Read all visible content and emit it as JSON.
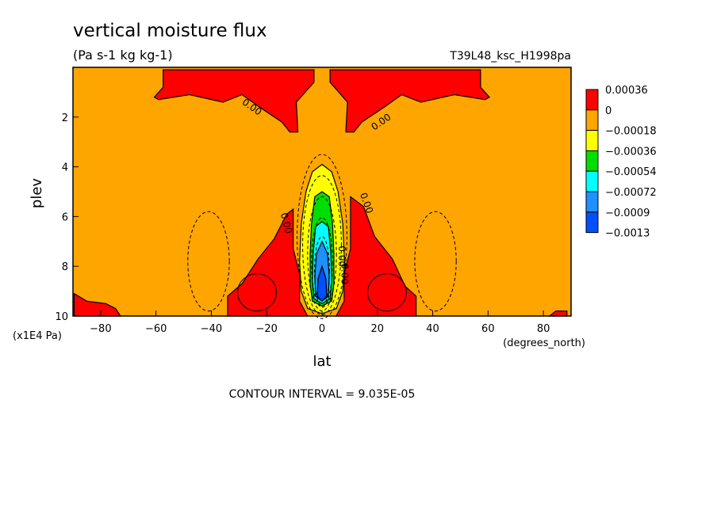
{
  "chart_data": {
    "type": "heatmap",
    "title": "vertical moisture flux",
    "units": "(Pa s-1 kg kg-1)",
    "run_label": "T39L48_ksc_H1998pa",
    "xlabel": "lat",
    "x_units": "(degrees_north)",
    "ylabel": "plev",
    "y_units": "(x1E4 Pa)",
    "xlim": [
      -90,
      90
    ],
    "ylim": [
      10,
      0
    ],
    "x_ticks": [
      -80,
      -60,
      -40,
      -20,
      0,
      20,
      40,
      60,
      80
    ],
    "y_ticks": [
      2,
      4,
      6,
      8,
      10
    ],
    "contour_interval_text": "CONTOUR INTERVAL = 9.035E-05",
    "contour_labels": [
      "0.00",
      "0.00",
      "0.00",
      "0.00",
      "0.00",
      "0.00"
    ],
    "colorbar": {
      "labels": [
        "0.00036",
        "0",
        "-0.00018",
        "-0.00036",
        "-0.00054",
        "-0.00072",
        "-0.0009",
        "-0.0013"
      ],
      "colors": [
        "#ff0000",
        "#ffa500",
        "#ffff00",
        "#00dd00",
        "#00ffff",
        "#1e90ff",
        "#0050ff"
      ]
    },
    "background_color": "#ffa500",
    "regions": [
      {
        "name": "positive-upper-left",
        "color": "#ff0000",
        "points": [
          [
            -57.4,
            0.1
          ],
          [
            -57.4,
            0.8
          ],
          [
            -60.6,
            1.2
          ],
          [
            -59.1,
            1.3
          ],
          [
            -47.9,
            1.1
          ],
          [
            -35.8,
            1.4
          ],
          [
            -28.9,
            1.1
          ],
          [
            -22.6,
            1.6
          ],
          [
            -14.5,
            2.2
          ],
          [
            -11.6,
            2.6
          ],
          [
            -8.7,
            2.6
          ],
          [
            -9.3,
            1.4
          ],
          [
            -2.9,
            0.6
          ],
          [
            -2.9,
            0.1
          ]
        ]
      },
      {
        "name": "positive-upper-right",
        "color": "#ff0000",
        "points": [
          [
            2.9,
            0.1
          ],
          [
            2.9,
            0.6
          ],
          [
            9.2,
            1.4
          ],
          [
            8.6,
            2.6
          ],
          [
            11.5,
            2.6
          ],
          [
            14.4,
            2.2
          ],
          [
            22.5,
            1.6
          ],
          [
            28.8,
            1.1
          ],
          [
            35.7,
            1.4
          ],
          [
            47.8,
            1.1
          ],
          [
            58.9,
            1.3
          ],
          [
            60.5,
            1.2
          ],
          [
            57.3,
            0.8
          ],
          [
            57.3,
            0.1
          ]
        ]
      },
      {
        "name": "positive-lower-left",
        "color": "#ff0000",
        "points": [
          [
            -34.1,
            10
          ],
          [
            -34.1,
            9.2
          ],
          [
            -28.9,
            8.7
          ],
          [
            -23.1,
            7.7
          ],
          [
            -17.3,
            6.9
          ],
          [
            -12.7,
            5.9
          ],
          [
            -10.4,
            5.7
          ],
          [
            -10.4,
            7.3
          ],
          [
            -8.1,
            8.3
          ],
          [
            -8.1,
            9.4
          ],
          [
            -5.2,
            10
          ]
        ]
      },
      {
        "name": "positive-lower-right",
        "color": "#ff0000",
        "points": [
          [
            5.1,
            10
          ],
          [
            8.0,
            9.4
          ],
          [
            8.0,
            8.3
          ],
          [
            10.3,
            7.3
          ],
          [
            10.3,
            5.2
          ],
          [
            15.0,
            5.6
          ],
          [
            19.0,
            6.8
          ],
          [
            25.4,
            7.7
          ],
          [
            30.0,
            8.8
          ],
          [
            34.0,
            9.2
          ],
          [
            34.0,
            10
          ]
        ]
      },
      {
        "name": "positive-bottom-left-corner",
        "color": "#ff0000",
        "points": [
          [
            -89.6,
            10
          ],
          [
            -89.6,
            9.1
          ],
          [
            -85.0,
            9.4
          ],
          [
            -78.1,
            9.5
          ],
          [
            -74.6,
            9.7
          ],
          [
            -72.8,
            10
          ]
        ]
      },
      {
        "name": "positive-bottom-right-corner",
        "color": "#ff0000",
        "points": [
          [
            82.2,
            10
          ],
          [
            84.5,
            9.8
          ],
          [
            88.5,
            9.8
          ],
          [
            88.5,
            10
          ]
        ]
      },
      {
        "name": "negative-level-1",
        "color": "#ffff00",
        "points": [
          [
            0.0,
            3.9
          ],
          [
            3.5,
            4.2
          ],
          [
            5.8,
            5.0
          ],
          [
            7.5,
            6.3
          ],
          [
            8.1,
            7.8
          ],
          [
            7.5,
            9.0
          ],
          [
            5.2,
            9.7
          ],
          [
            0.0,
            9.9
          ],
          [
            -5.2,
            9.7
          ],
          [
            -7.5,
            9.0
          ],
          [
            -8.1,
            7.8
          ],
          [
            -7.5,
            6.3
          ],
          [
            -5.8,
            5.0
          ],
          [
            -3.5,
            4.2
          ]
        ]
      },
      {
        "name": "negative-level-2",
        "color": "#00dd00",
        "points": [
          [
            0.0,
            5.0
          ],
          [
            2.6,
            5.2
          ],
          [
            3.8,
            6.3
          ],
          [
            4.3,
            7.5
          ],
          [
            4.3,
            8.7
          ],
          [
            3.5,
            9.4
          ],
          [
            0.0,
            9.6
          ],
          [
            -3.5,
            9.4
          ],
          [
            -4.3,
            8.7
          ],
          [
            -4.3,
            7.5
          ],
          [
            -3.8,
            6.3
          ],
          [
            -2.6,
            5.2
          ]
        ]
      },
      {
        "name": "negative-level-3",
        "color": "#00ffff",
        "points": [
          [
            0.0,
            6.2
          ],
          [
            2.3,
            6.4
          ],
          [
            3.2,
            7.5
          ],
          [
            3.5,
            8.6
          ],
          [
            2.9,
            9.3
          ],
          [
            0.0,
            9.5
          ],
          [
            -2.9,
            9.3
          ],
          [
            -3.5,
            8.6
          ],
          [
            -3.2,
            7.5
          ],
          [
            -2.3,
            6.4
          ]
        ]
      },
      {
        "name": "negative-level-4",
        "color": "#1e90ff",
        "points": [
          [
            0.0,
            7.0
          ],
          [
            2.0,
            7.5
          ],
          [
            2.6,
            8.4
          ],
          [
            2.3,
            9.2
          ],
          [
            0.0,
            9.4
          ],
          [
            -2.3,
            9.2
          ],
          [
            -2.6,
            8.4
          ],
          [
            -2.0,
            7.5
          ]
        ]
      },
      {
        "name": "negative-level-5",
        "color": "#0050ff",
        "points": [
          [
            0.0,
            8.0
          ],
          [
            1.4,
            8.5
          ],
          [
            1.7,
            9.2
          ],
          [
            0.0,
            9.4
          ],
          [
            -1.7,
            9.2
          ],
          [
            -1.4,
            8.5
          ]
        ]
      }
    ]
  }
}
